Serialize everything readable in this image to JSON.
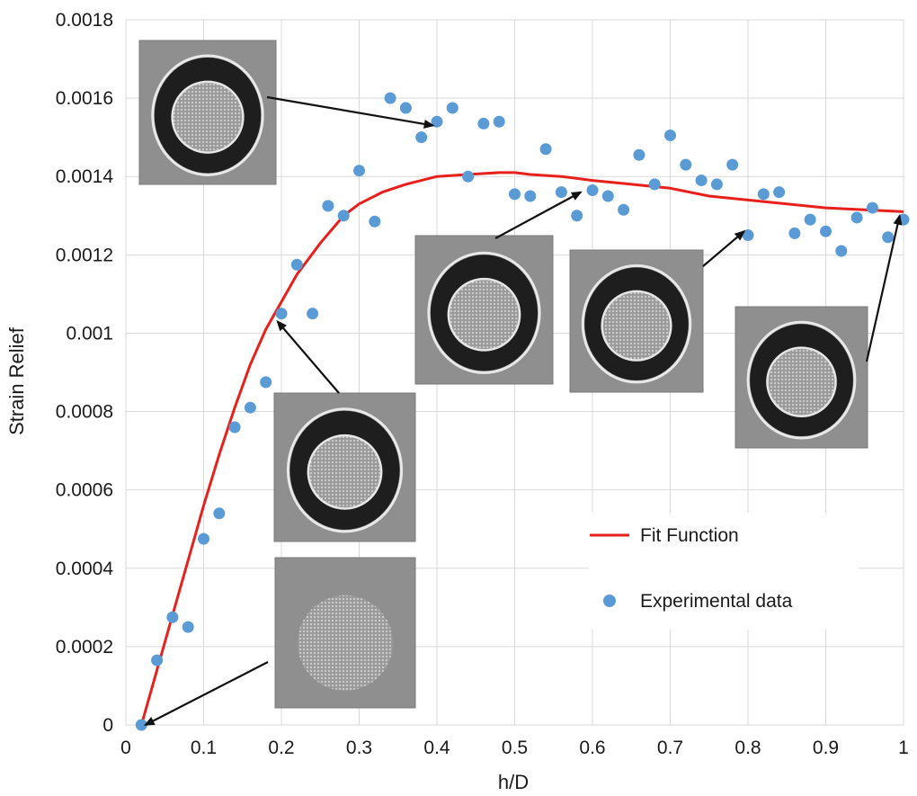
{
  "chart_data": {
    "type": "scatter",
    "title": "",
    "xlabel": "h/D",
    "ylabel": "Strain Relief",
    "xlim": [
      0,
      1
    ],
    "ylim": [
      0,
      0.0018
    ],
    "x_ticks": [
      0,
      0.1,
      0.2,
      0.3,
      0.4,
      0.5,
      0.6,
      0.7,
      0.8,
      0.9,
      1
    ],
    "x_tick_labels": [
      "0",
      "0.1",
      "0.2",
      "0.3",
      "0.4",
      "0.5",
      "0.6",
      "0.7",
      "0.8",
      "0.9",
      "1"
    ],
    "y_ticks": [
      0,
      0.0002,
      0.0004,
      0.0006,
      0.0008,
      0.001,
      0.0012,
      0.0014,
      0.0016,
      0.0018
    ],
    "y_tick_labels": [
      "0",
      "0.0002",
      "0.0004",
      "0.0006",
      "0.0008",
      "0.001",
      "0.0012",
      "0.0014",
      "0.0016",
      "0.0018"
    ],
    "grid": true,
    "legend_position": "lower-right",
    "series": [
      {
        "name": "Fit Function",
        "kind": "line",
        "color": "#e8201c",
        "x": [
          0.02,
          0.04,
          0.06,
          0.08,
          0.1,
          0.12,
          0.14,
          0.16,
          0.18,
          0.2,
          0.22,
          0.25,
          0.28,
          0.3,
          0.33,
          0.36,
          0.4,
          0.44,
          0.48,
          0.5,
          0.52,
          0.56,
          0.6,
          0.65,
          0.7,
          0.75,
          0.8,
          0.85,
          0.9,
          0.95,
          1.0
        ],
        "y": [
          0.0,
          0.00014,
          0.00028,
          0.00042,
          0.00056,
          0.00069,
          0.00081,
          0.00092,
          0.00101,
          0.00108,
          0.00115,
          0.00123,
          0.0013,
          0.00133,
          0.00136,
          0.00138,
          0.0014,
          0.001405,
          0.00141,
          0.00141,
          0.001405,
          0.0014,
          0.00139,
          0.00138,
          0.00137,
          0.00135,
          0.00134,
          0.00133,
          0.00132,
          0.001315,
          0.00131
        ]
      },
      {
        "name": "Experimental data",
        "kind": "scatter",
        "color": "#5b9bd5",
        "x": [
          0.02,
          0.04,
          0.06,
          0.08,
          0.1,
          0.12,
          0.14,
          0.16,
          0.18,
          0.2,
          0.22,
          0.24,
          0.26,
          0.28,
          0.3,
          0.32,
          0.34,
          0.36,
          0.38,
          0.4,
          0.42,
          0.44,
          0.46,
          0.48,
          0.5,
          0.52,
          0.54,
          0.56,
          0.58,
          0.6,
          0.62,
          0.64,
          0.66,
          0.68,
          0.7,
          0.72,
          0.74,
          0.76,
          0.78,
          0.8,
          0.82,
          0.84,
          0.86,
          0.88,
          0.9,
          0.92,
          0.94,
          0.96,
          0.98,
          1.0
        ],
        "y": [
          0.0,
          0.000165,
          0.000275,
          0.00025,
          0.000475,
          0.00054,
          0.00076,
          0.00081,
          0.000875,
          0.00105,
          0.001175,
          0.00105,
          0.001325,
          0.0013,
          0.001415,
          0.001285,
          0.0016,
          0.001575,
          0.0015,
          0.00154,
          0.001575,
          0.0014,
          0.001535,
          0.00154,
          0.001355,
          0.00135,
          0.00147,
          0.00136,
          0.0013,
          0.001365,
          0.00135,
          0.001315,
          0.001455,
          0.00138,
          0.001505,
          0.00143,
          0.00139,
          0.00138,
          0.00143,
          0.00125,
          0.001355,
          0.00136,
          0.001255,
          0.00129,
          0.00126,
          0.00121,
          0.001295,
          0.00132,
          0.001245,
          0.00129
        ]
      }
    ],
    "insets": [
      {
        "name": "SEM micrograph at h/D 0.4",
        "points_to": [
          0.395,
          0.00153
        ]
      },
      {
        "name": "SEM micrograph at h/D 0.2",
        "points_to": [
          0.195,
          0.00103
        ]
      },
      {
        "name": "SEM micrograph at h/D 0.02",
        "points_to": [
          0.025,
          0.0
        ]
      },
      {
        "name": "SEM micrograph at h/D 0.6",
        "points_to": [
          0.585,
          0.00136
        ]
      },
      {
        "name": "SEM micrograph at h/D 0.8",
        "points_to": [
          0.795,
          0.00126
        ]
      },
      {
        "name": "SEM micrograph at h/D 1.0",
        "points_to": [
          0.995,
          0.0013
        ]
      }
    ]
  }
}
